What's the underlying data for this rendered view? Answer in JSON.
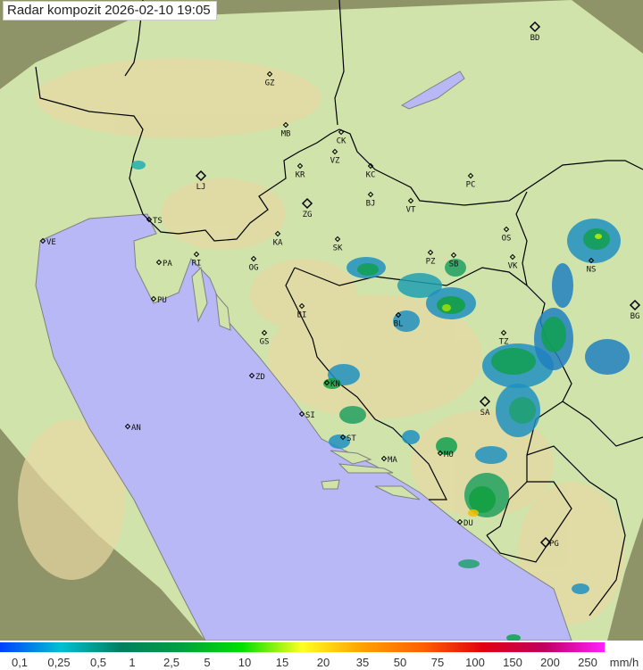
{
  "title": "Radar kompozit  2026-02-10   19:05",
  "legend": {
    "labels": [
      "0,1",
      "0,25",
      "0,5",
      "1",
      "2,5",
      "5",
      "10",
      "15",
      "20",
      "35",
      "50",
      "75",
      "100",
      "150",
      "200",
      "250"
    ],
    "unit": "mm/h",
    "colors": [
      "#0040ff",
      "#00c0d0",
      "#008060",
      "#00a040",
      "#00e000",
      "#ffff20",
      "#ffa000",
      "#ff6000",
      "#e00010",
      "#c00060",
      "#ff20ff"
    ]
  },
  "map": {
    "colors": {
      "land": "#cfe3ab",
      "terrain": "#e6d9a0",
      "sea": "#b8b8f6",
      "outside": "#8f9468",
      "border": "#000000",
      "coast": "#808080"
    },
    "cities": [
      "GZ",
      "BD",
      "MB",
      "CK",
      "VZ",
      "KR",
      "KC",
      "PC",
      "LJ",
      "ZG",
      "BJ",
      "VT",
      "TS",
      "VE",
      "RI",
      "KA",
      "SK",
      "OS",
      "PZ",
      "SB",
      "VK",
      "NS",
      "PA",
      "OG",
      "PU",
      "BG",
      "BI",
      "BL",
      "GS",
      "TZ",
      "ZD",
      "KN",
      "SA",
      "SI",
      "AN",
      "ST",
      "MO",
      "MA",
      "DU",
      "PG"
    ]
  }
}
